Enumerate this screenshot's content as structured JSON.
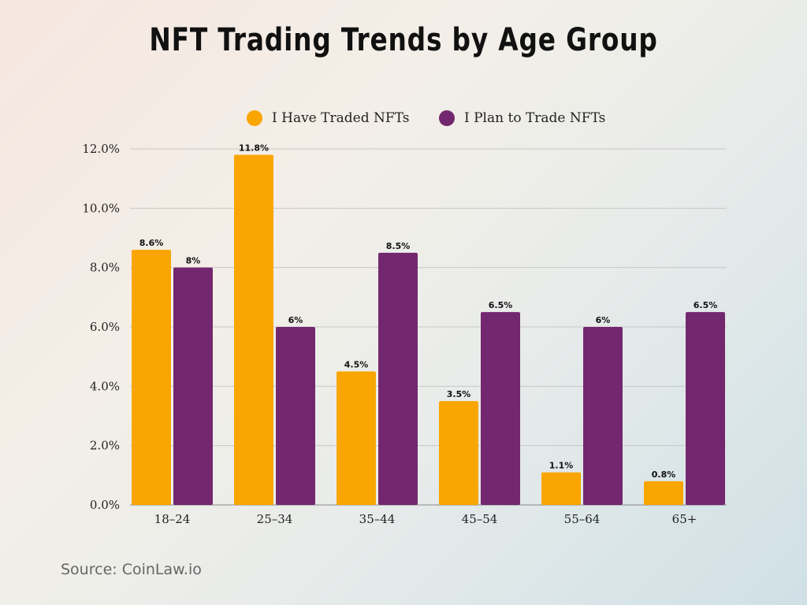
{
  "chart_data": {
    "type": "bar",
    "title": "NFT Trading Trends by Age Group",
    "categories": [
      "18–24",
      "25–34",
      "35–44",
      "45–54",
      "55–64",
      "65+"
    ],
    "series": [
      {
        "name": "I Have Traded NFTs",
        "values": [
          8.6,
          11.8,
          4.5,
          3.5,
          1.1,
          0.8
        ],
        "labels": [
          "8.6%",
          "11.8%",
          "4.5%",
          "3.5%",
          "1.1%",
          "0.8%"
        ],
        "color": "#F9A603"
      },
      {
        "name": "I Plan to Trade NFTs",
        "values": [
          8,
          6,
          8.5,
          6.5,
          6,
          6.5
        ],
        "labels": [
          "8%",
          "6%",
          "8.5%",
          "6.5%",
          "6%",
          "6.5%"
        ],
        "color": "#73276E"
      }
    ],
    "yticks": [
      "0.0%",
      "2.0%",
      "4.0%",
      "6.0%",
      "8.0%",
      "10.0%",
      "12.0%"
    ],
    "ylim": [
      0,
      12
    ],
    "grid": true,
    "legend": "top-center",
    "xlabel": "",
    "ylabel": ""
  },
  "source": "Source: CoinLaw.io"
}
